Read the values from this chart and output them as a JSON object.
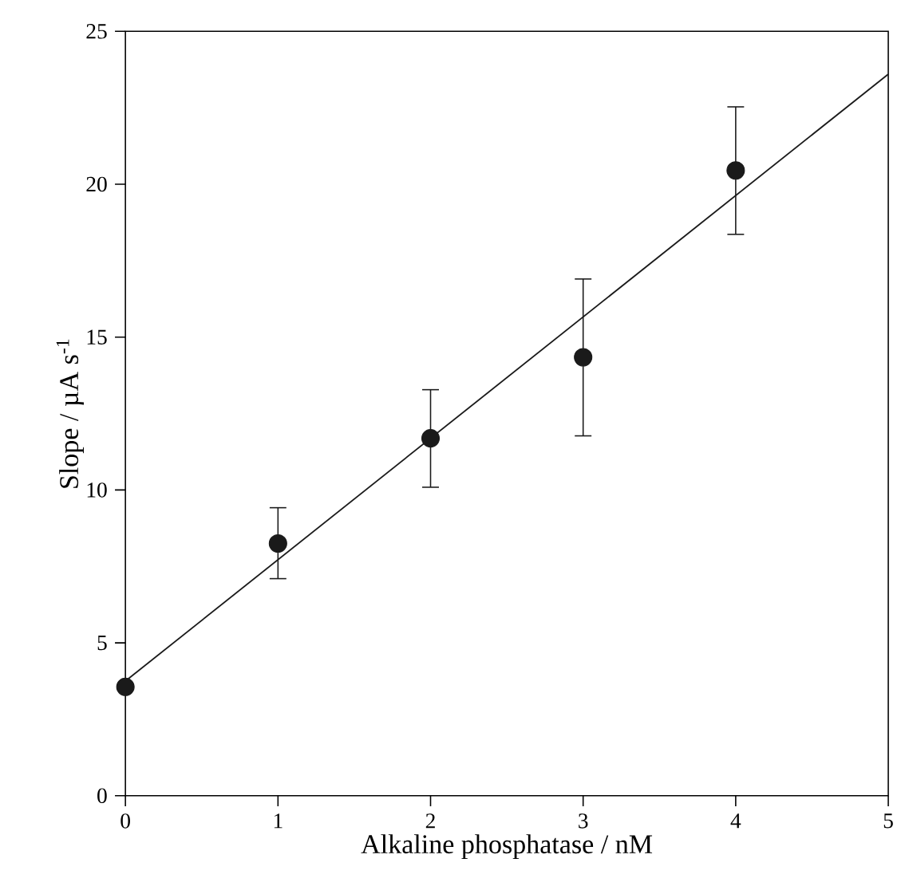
{
  "chart_data": {
    "type": "scatter",
    "xlabel": "Alkaline phosphatase / nM",
    "ylabel": "Slope / µA s$^{-1}$",
    "xlim": [
      0,
      5
    ],
    "ylim": [
      0,
      25
    ],
    "xticks": [
      0,
      1,
      2,
      3,
      4,
      5
    ],
    "yticks": [
      0,
      5,
      10,
      15,
      20,
      25
    ],
    "series": [
      {
        "x": [
          0,
          1,
          2,
          3,
          4
        ],
        "values": [
          3.56,
          8.25,
          11.69,
          14.34,
          20.45
        ],
        "errors": [
          null,
          [
            7.1,
            9.42
          ],
          [
            10.09,
            13.28
          ],
          [
            11.77,
            16.9
          ],
          [
            18.36,
            22.53
          ]
        ],
        "color": "#1a1a1a",
        "marker": "circle"
      },
      {
        "type": "line",
        "x": [
          0,
          5
        ],
        "values": [
          3.75,
          23.6
        ],
        "color": "#1a1a1a",
        "line_style": "solid",
        "marker": "none"
      }
    ]
  }
}
